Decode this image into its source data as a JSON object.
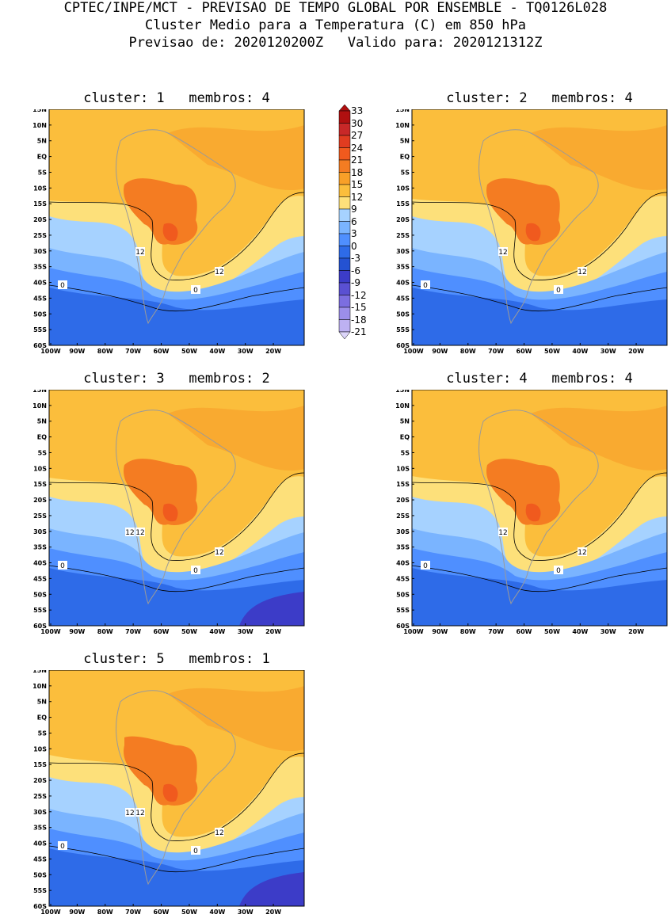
{
  "header": {
    "line1": "CPTEC/INPE/MCT - PREVISAO DE TEMPO GLOBAL POR ENSEMBLE - TQ0126L028",
    "line2": "Cluster Medio para a Temperatura (C) em 850 hPa",
    "line3": "Previsao de: 2020120200Z   Valido para: 2020121312Z"
  },
  "axes": {
    "lat_labels": [
      "15N",
      "10N",
      "5N",
      "EQ",
      "5S",
      "10S",
      "15S",
      "20S",
      "25S",
      "30S",
      "35S",
      "40S",
      "45S",
      "50S",
      "55S",
      "60S"
    ],
    "lon_labels": [
      "100W",
      "90W",
      "80W",
      "70W",
      "60W",
      "50W",
      "40W",
      "30W",
      "20W"
    ]
  },
  "colorbar": {
    "labels": [
      "33",
      "30",
      "27",
      "24",
      "21",
      "18",
      "15",
      "12",
      "9",
      "6",
      "3",
      "0",
      "-3",
      "-6",
      "-9",
      "-12",
      "-15",
      "-18",
      "-21"
    ],
    "colors": [
      "#b01010",
      "#c82828",
      "#e03c20",
      "#f05a1e",
      "#f47c22",
      "#f8a028",
      "#fbbe3c",
      "#fde07a",
      "#a6d2ff",
      "#7ab4ff",
      "#4f8fff",
      "#2e6be8",
      "#2452d2",
      "#3c3cc8",
      "#5a50d2",
      "#7c6ee0",
      "#9c8eea",
      "#bdb1f2",
      "#dcd5fa"
    ]
  },
  "panels": [
    {
      "title": "cluster: 1   membros: 4",
      "labels12": [
        "12",
        "12"
      ],
      "labels0": [
        "0",
        "0"
      ]
    },
    {
      "title": "cluster: 2   membros: 4",
      "labels12": [
        "12",
        "12"
      ],
      "labels0": [
        "0",
        "0"
      ]
    },
    {
      "title": "cluster: 3   membros: 2",
      "labels12": [
        "12",
        "12",
        "12"
      ],
      "labels0": [
        "0",
        "0"
      ]
    },
    {
      "title": "cluster: 4   membros: 4",
      "labels12": [
        "12",
        "12"
      ],
      "labels0": [
        "0",
        "0"
      ]
    },
    {
      "title": "cluster: 5   membros: 1",
      "labels12": [
        "12",
        "12",
        "12"
      ],
      "labels0": [
        "0",
        "0"
      ]
    }
  ]
}
